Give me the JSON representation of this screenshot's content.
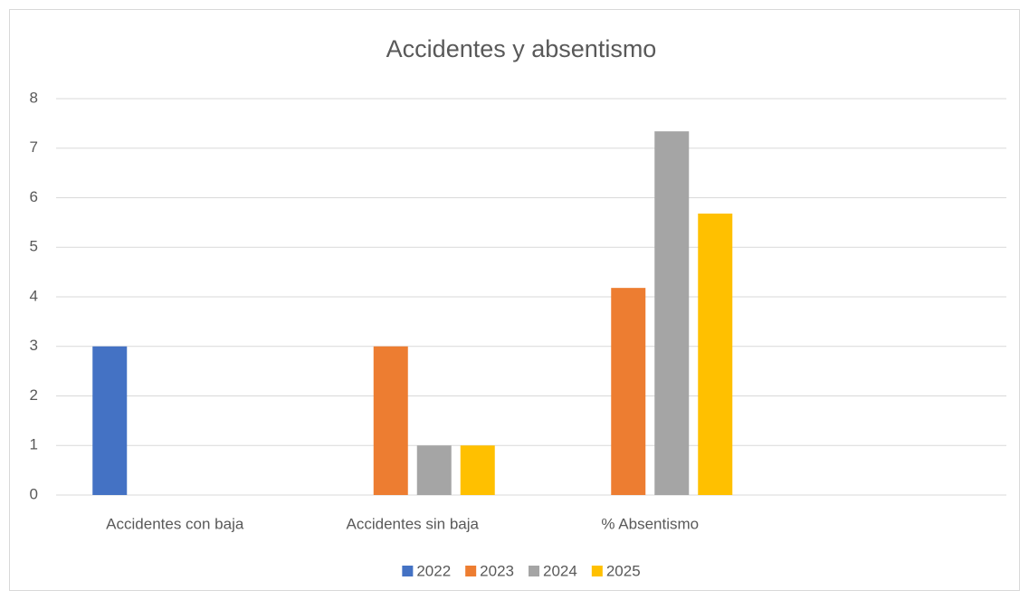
{
  "chart_data": {
    "type": "bar",
    "title": "Accidentes y absentismo",
    "categories": [
      "Accidentes con baja",
      "Accidentes sin baja",
      "% Absentismo",
      null
    ],
    "series": [
      {
        "name": "2022",
        "color": "#4472c4",
        "values": [
          3,
          null,
          null,
          null
        ]
      },
      {
        "name": "2023",
        "color": "#ed7d31",
        "values": [
          null,
          3,
          4.18,
          null
        ]
      },
      {
        "name": "2024",
        "color": "#a5a5a5",
        "values": [
          null,
          1,
          7.34,
          null
        ]
      },
      {
        "name": "2025",
        "color": "#ffc000",
        "values": [
          null,
          1,
          5.68,
          null
        ]
      }
    ],
    "ylim": [
      0,
      8
    ],
    "yticks": [
      0,
      1,
      2,
      3,
      4,
      5,
      6,
      7,
      8
    ],
    "grid": true,
    "legend": "bottom"
  }
}
